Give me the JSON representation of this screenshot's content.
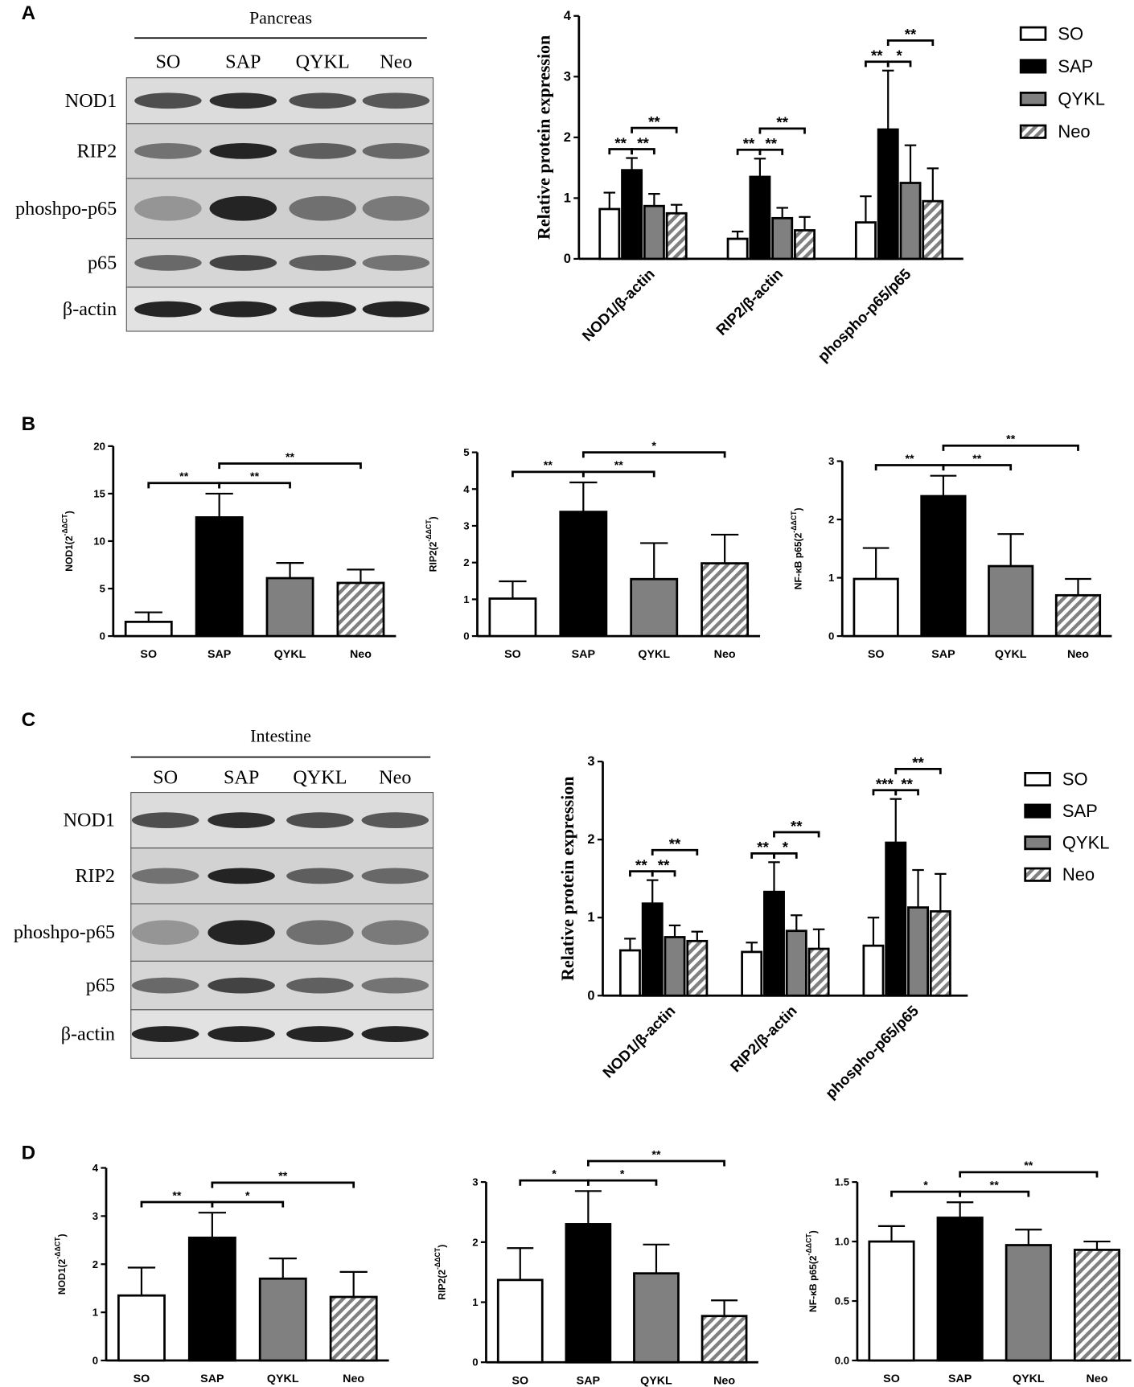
{
  "panels": [
    "A",
    "B",
    "C",
    "D"
  ],
  "blots": [
    {
      "title": "Pancreas",
      "lanes": [
        "SO",
        "SAP",
        "QYKL",
        "Neo"
      ],
      "rows": [
        "NOD1",
        "RIP2",
        "phoshpo-p65",
        "p65",
        "β-actin"
      ]
    },
    {
      "title": "Intestine",
      "lanes": [
        "SO",
        "SAP",
        "QYKL",
        "Neo"
      ],
      "rows": [
        "NOD1",
        "RIP2",
        "phoshpo-p65",
        "p65",
        "β-actin"
      ]
    }
  ],
  "chart_data": [
    {
      "type": "bar",
      "ylabel": "Relative protein expression",
      "categories": [
        "NOD1/β-actin",
        "RIP2/β-actin",
        "phospho-p65/p65"
      ],
      "series": [
        {
          "name": "SO",
          "color": "#ffffff",
          "values": [
            0.82,
            0.33,
            0.6
          ],
          "errors": [
            0.27,
            0.12,
            0.43
          ]
        },
        {
          "name": "SAP",
          "color": "#000000",
          "values": [
            1.46,
            1.35,
            2.13
          ],
          "errors": [
            0.2,
            0.3,
            0.97
          ]
        },
        {
          "name": "QYKL",
          "color": "#808080",
          "values": [
            0.87,
            0.67,
            1.25
          ],
          "errors": [
            0.2,
            0.17,
            0.62
          ]
        },
        {
          "name": "Neo",
          "color": "#808080",
          "pattern": "hatch",
          "values": [
            0.75,
            0.47,
            0.95
          ],
          "errors": [
            0.14,
            0.22,
            0.54
          ]
        }
      ],
      "ylim": [
        0,
        4
      ],
      "yticks": [
        0,
        1,
        2,
        3,
        4
      ],
      "legend": "right",
      "significance": [
        {
          "category": "NOD1/β-actin",
          "pair": [
            "SO",
            "SAP"
          ],
          "label": "**"
        },
        {
          "category": "NOD1/β-actin",
          "pair": [
            "SAP",
            "QYKL"
          ],
          "label": "**"
        },
        {
          "category": "NOD1/β-actin",
          "pair": [
            "SAP",
            "Neo"
          ],
          "label": "**"
        },
        {
          "category": "RIP2/β-actin",
          "pair": [
            "SO",
            "SAP"
          ],
          "label": "**"
        },
        {
          "category": "RIP2/β-actin",
          "pair": [
            "SAP",
            "QYKL"
          ],
          "label": "**"
        },
        {
          "category": "RIP2/β-actin",
          "pair": [
            "SAP",
            "Neo"
          ],
          "label": "**"
        },
        {
          "category": "phospho-p65/p65",
          "pair": [
            "SO",
            "SAP"
          ],
          "label": "**"
        },
        {
          "category": "phospho-p65/p65",
          "pair": [
            "SAP",
            "QYKL"
          ],
          "label": "*"
        },
        {
          "category": "phospho-p65/p65",
          "pair": [
            "SAP",
            "Neo"
          ],
          "label": "**"
        }
      ]
    },
    {
      "type": "bar",
      "ylabel": {
        "text": "NOD1(2",
        "sup": "-ΔΔCT",
        "end": ")"
      },
      "categories": [
        "SO",
        "SAP",
        "QYKL",
        "Neo"
      ],
      "values": [
        1.5,
        12.5,
        6.1,
        5.6
      ],
      "errors": [
        1.0,
        2.5,
        1.6,
        1.4
      ],
      "colors": [
        "#ffffff",
        "#000000",
        "#808080",
        "#808080"
      ],
      "bar_styles": [
        "solid",
        "solid",
        "solid",
        "hatch"
      ],
      "ylim": [
        0,
        20
      ],
      "yticks": [
        0,
        5,
        10,
        15,
        20
      ],
      "significance": [
        {
          "pair": [
            "SO",
            "SAP"
          ],
          "label": "**"
        },
        {
          "pair": [
            "SAP",
            "QYKL"
          ],
          "label": "**"
        },
        {
          "pair": [
            "SAP",
            "Neo"
          ],
          "label": "**"
        }
      ]
    },
    {
      "type": "bar",
      "ylabel": {
        "text": "RIP2(2",
        "sup": "-ΔΔCT",
        "end": ")"
      },
      "categories": [
        "SO",
        "SAP",
        "QYKL",
        "Neo"
      ],
      "values": [
        1.02,
        3.38,
        1.55,
        1.98
      ],
      "errors": [
        0.47,
        0.8,
        0.98,
        0.78
      ],
      "colors": [
        "#ffffff",
        "#000000",
        "#808080",
        "#808080"
      ],
      "bar_styles": [
        "solid",
        "solid",
        "solid",
        "hatch"
      ],
      "ylim": [
        0,
        5
      ],
      "yticks": [
        0,
        1,
        2,
        3,
        4,
        5
      ],
      "significance": [
        {
          "pair": [
            "SO",
            "SAP"
          ],
          "label": "**"
        },
        {
          "pair": [
            "SAP",
            "QYKL"
          ],
          "label": "**"
        },
        {
          "pair": [
            "SAP",
            "Neo"
          ],
          "label": "*"
        }
      ]
    },
    {
      "type": "bar",
      "ylabel": {
        "text": "NF-κB p65(2",
        "sup": "-ΔΔCT",
        "end": ")"
      },
      "categories": [
        "SO",
        "SAP",
        "QYKL",
        "Neo"
      ],
      "values": [
        0.98,
        2.4,
        1.2,
        0.7
      ],
      "errors": [
        0.53,
        0.35,
        0.55,
        0.28
      ],
      "colors": [
        "#ffffff",
        "#000000",
        "#808080",
        "#808080"
      ],
      "bar_styles": [
        "solid",
        "solid",
        "solid",
        "hatch"
      ],
      "ylim": [
        0,
        3
      ],
      "yticks": [
        0,
        1,
        2,
        3
      ],
      "significance": [
        {
          "pair": [
            "SO",
            "SAP"
          ],
          "label": "**"
        },
        {
          "pair": [
            "SAP",
            "QYKL"
          ],
          "label": "**"
        },
        {
          "pair": [
            "SAP",
            "Neo"
          ],
          "label": "**"
        }
      ]
    },
    {
      "type": "bar",
      "ylabel": "Relative protein expression",
      "categories": [
        "NOD1/β-actin",
        "RIP2/β-actin",
        "phospho-p65/p65"
      ],
      "series": [
        {
          "name": "SO",
          "color": "#ffffff",
          "values": [
            0.58,
            0.56,
            0.64
          ],
          "errors": [
            0.15,
            0.12,
            0.36
          ]
        },
        {
          "name": "SAP",
          "color": "#000000",
          "values": [
            1.18,
            1.33,
            1.96
          ],
          "errors": [
            0.3,
            0.38,
            0.56
          ]
        },
        {
          "name": "QYKL",
          "color": "#808080",
          "values": [
            0.75,
            0.83,
            1.13
          ],
          "errors": [
            0.15,
            0.2,
            0.48
          ]
        },
        {
          "name": "Neo",
          "color": "#808080",
          "pattern": "hatch",
          "values": [
            0.7,
            0.6,
            1.08
          ],
          "errors": [
            0.12,
            0.25,
            0.48
          ]
        }
      ],
      "ylim": [
        0,
        3
      ],
      "yticks": [
        0,
        1,
        2,
        3
      ],
      "legend": "right",
      "significance": [
        {
          "category": "NOD1/β-actin",
          "pair": [
            "SO",
            "SAP"
          ],
          "label": "**"
        },
        {
          "category": "NOD1/β-actin",
          "pair": [
            "SAP",
            "QYKL"
          ],
          "label": "**"
        },
        {
          "category": "NOD1/β-actin",
          "pair": [
            "SAP",
            "Neo"
          ],
          "label": "**"
        },
        {
          "category": "RIP2/β-actin",
          "pair": [
            "SO",
            "SAP"
          ],
          "label": "**"
        },
        {
          "category": "RIP2/β-actin",
          "pair": [
            "SAP",
            "QYKL"
          ],
          "label": "*"
        },
        {
          "category": "RIP2/β-actin",
          "pair": [
            "SAP",
            "Neo"
          ],
          "label": "**"
        },
        {
          "category": "phospho-p65/p65",
          "pair": [
            "SO",
            "SAP"
          ],
          "label": "***"
        },
        {
          "category": "phospho-p65/p65",
          "pair": [
            "SAP",
            "QYKL"
          ],
          "label": "**"
        },
        {
          "category": "phospho-p65/p65",
          "pair": [
            "SAP",
            "Neo"
          ],
          "label": "**"
        }
      ]
    },
    {
      "type": "bar",
      "ylabel": {
        "text": "NOD1(2",
        "sup": "-ΔΔCT",
        "end": ")"
      },
      "categories": [
        "SO",
        "SAP",
        "QYKL",
        "Neo"
      ],
      "values": [
        1.35,
        2.55,
        1.7,
        1.32
      ],
      "errors": [
        0.58,
        0.52,
        0.42,
        0.52
      ],
      "colors": [
        "#ffffff",
        "#000000",
        "#808080",
        "#808080"
      ],
      "bar_styles": [
        "solid",
        "solid",
        "solid",
        "hatch"
      ],
      "ylim": [
        0,
        4
      ],
      "yticks": [
        0,
        1,
        2,
        3,
        4
      ],
      "significance": [
        {
          "pair": [
            "SO",
            "SAP"
          ],
          "label": "**"
        },
        {
          "pair": [
            "SAP",
            "QYKL"
          ],
          "label": "*"
        },
        {
          "pair": [
            "SAP",
            "Neo"
          ],
          "label": "**"
        }
      ]
    },
    {
      "type": "bar",
      "ylabel": {
        "text": "RIP2(2",
        "sup": "-ΔΔCT",
        "end": ")"
      },
      "categories": [
        "SO",
        "SAP",
        "QYKL",
        "Neo"
      ],
      "values": [
        1.37,
        2.3,
        1.48,
        0.77
      ],
      "errors": [
        0.53,
        0.55,
        0.48,
        0.26
      ],
      "colors": [
        "#ffffff",
        "#000000",
        "#808080",
        "#808080"
      ],
      "bar_styles": [
        "solid",
        "solid",
        "solid",
        "hatch"
      ],
      "ylim": [
        0,
        3
      ],
      "yticks": [
        0,
        1,
        2,
        3
      ],
      "significance": [
        {
          "pair": [
            "SO",
            "SAP"
          ],
          "label": "*"
        },
        {
          "pair": [
            "SAP",
            "QYKL"
          ],
          "label": "*"
        },
        {
          "pair": [
            "SAP",
            "Neo"
          ],
          "label": "**"
        }
      ]
    },
    {
      "type": "bar",
      "ylabel": {
        "text": "NF-κB p65(2",
        "sup": "-ΔΔCT",
        "end": ")"
      },
      "categories": [
        "SO",
        "SAP",
        "QYKL",
        "Neo"
      ],
      "values": [
        1.0,
        1.2,
        0.97,
        0.93
      ],
      "errors": [
        0.13,
        0.13,
        0.13,
        0.07
      ],
      "colors": [
        "#ffffff",
        "#000000",
        "#808080",
        "#808080"
      ],
      "bar_styles": [
        "solid",
        "solid",
        "solid",
        "hatch"
      ],
      "ylim": [
        0,
        1.5
      ],
      "yticks": [
        {
          "value": 0,
          "label": "0.0"
        },
        0.5,
        {
          "value": 1,
          "label": "1.0"
        },
        1.5
      ],
      "significance": [
        {
          "pair": [
            "SO",
            "SAP"
          ],
          "label": "*"
        },
        {
          "pair": [
            "SAP",
            "QYKL"
          ],
          "label": "**"
        },
        {
          "pair": [
            "SAP",
            "Neo"
          ],
          "label": "**"
        }
      ]
    }
  ]
}
